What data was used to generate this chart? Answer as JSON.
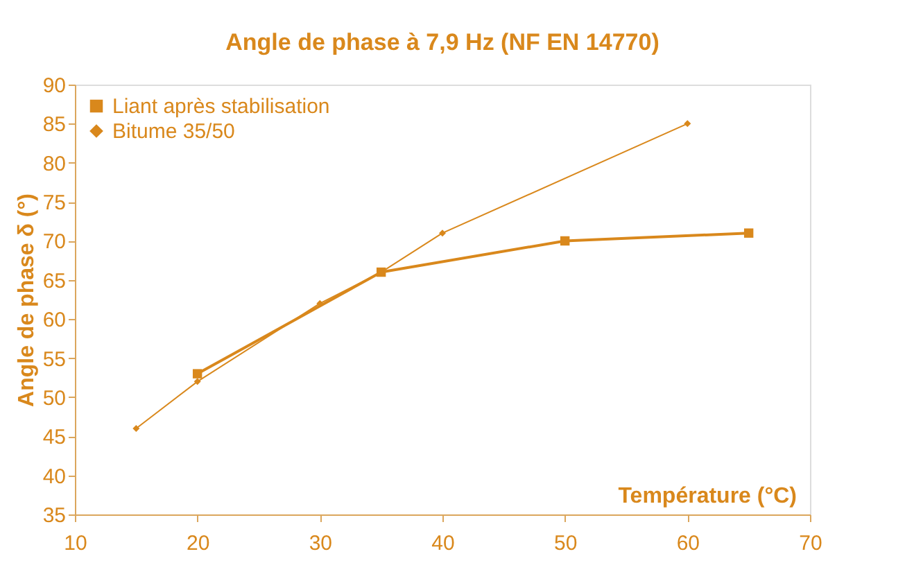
{
  "chart_data": {
    "type": "line",
    "title": "Angle de phase à 7,9 Hz (NF EN 14770)",
    "xlabel": "Température (°C)",
    "ylabel": "Angle de phase δ (°)",
    "xlim": [
      10,
      70
    ],
    "xticks": [
      10,
      20,
      30,
      40,
      50,
      60,
      70
    ],
    "ylim": [
      35,
      90
    ],
    "yticks": [
      35,
      40,
      45,
      50,
      55,
      60,
      65,
      70,
      75,
      80,
      85,
      90
    ],
    "grid": false,
    "legend": "top left",
    "series": [
      {
        "name": "Liant après stabilisation",
        "color": "#d9881c",
        "marker": "square",
        "x": [
          20,
          35,
          50,
          65
        ],
        "values": [
          53,
          66,
          70,
          71
        ]
      },
      {
        "name": "Bitume 35/50",
        "color": "#d9881c",
        "marker": "diamond",
        "x": [
          15,
          20,
          30,
          35,
          40,
          60
        ],
        "values": [
          46,
          52,
          62,
          66,
          71,
          85
        ]
      }
    ]
  }
}
